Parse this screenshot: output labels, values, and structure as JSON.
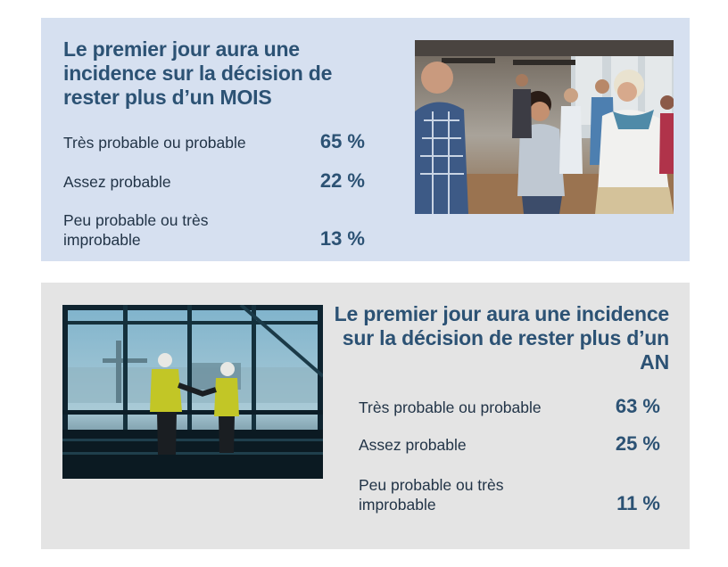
{
  "colors": {
    "panel_top_bg": "#d6e0f0",
    "panel_bottom_bg": "#e4e4e4",
    "accent": "#2c5274",
    "body_text": "#223447"
  },
  "month_panel": {
    "title": "Le premier jour aura une incidence sur la décision de rester plus d’un MOIS",
    "rows": [
      {
        "label": "Très probable ou probable",
        "value": "65 %"
      },
      {
        "label": "Assez probable",
        "value": "22 %"
      },
      {
        "label": "Peu probable ou très improbable",
        "value": "13 %"
      }
    ],
    "photo": "photo-office-colleagues-greeting"
  },
  "year_panel": {
    "title": "Le premier jour aura une incidence sur la décision de rester plus d’un AN",
    "rows": [
      {
        "label": "Très probable ou probable",
        "value": "63 %"
      },
      {
        "label": "Assez probable",
        "value": "25 %"
      },
      {
        "label": "Peu probable ou très improbable",
        "value": "11 %"
      }
    ],
    "photo": "photo-construction-workers-handshake"
  }
}
